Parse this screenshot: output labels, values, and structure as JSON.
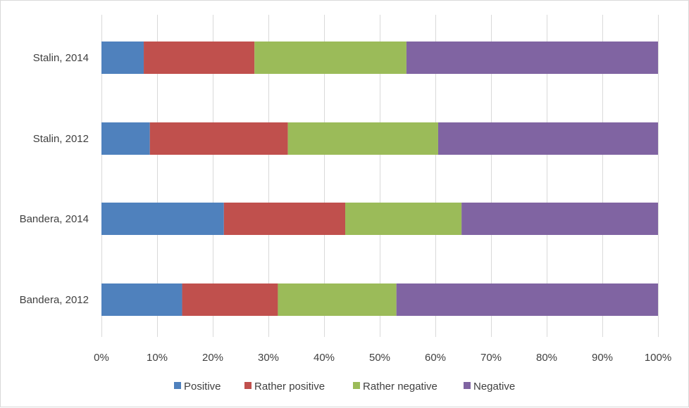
{
  "chart_data": {
    "type": "bar",
    "orientation": "horizontal",
    "stacked": "percent",
    "categories": [
      "Stalin, 2014",
      "Stalin, 2012",
      "Bandera, 2014",
      "Bandera, 2012"
    ],
    "series": [
      {
        "name": "Positive",
        "color": "#4f81bd",
        "values": [
          7.6,
          8.7,
          22.0,
          14.5
        ]
      },
      {
        "name": "Rather positive",
        "color": "#c0504d",
        "values": [
          19.9,
          24.8,
          21.8,
          17.2
        ]
      },
      {
        "name": "Rather negative",
        "color": "#9bbb59",
        "values": [
          27.3,
          27.0,
          20.9,
          21.3
        ]
      },
      {
        "name": "Negative",
        "color": "#8064a2",
        "values": [
          45.2,
          39.5,
          35.3,
          47.0
        ]
      }
    ],
    "xlim": [
      0,
      100
    ],
    "x_ticks": [
      "0%",
      "10%",
      "20%",
      "30%",
      "40%",
      "50%",
      "60%",
      "70%",
      "80%",
      "90%",
      "100%"
    ],
    "grid": true,
    "legend_position": "bottom",
    "title": "",
    "xlabel": "",
    "ylabel": ""
  }
}
